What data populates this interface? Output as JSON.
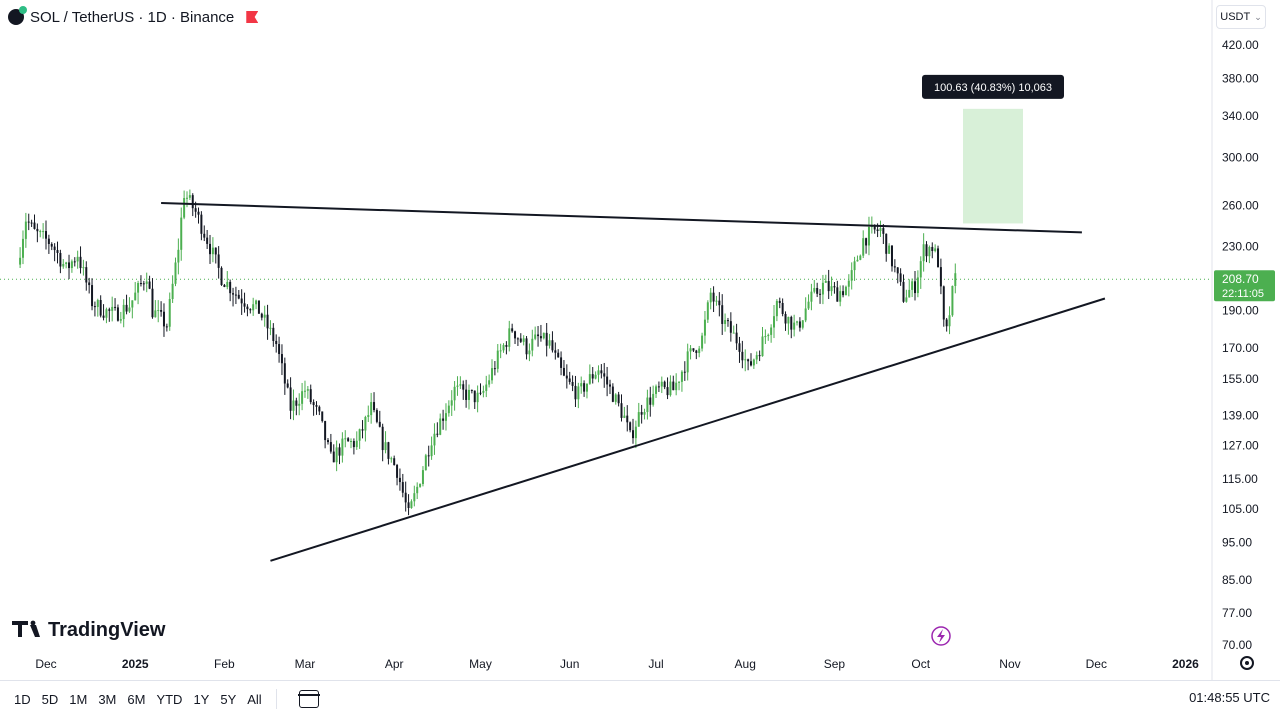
{
  "header": {
    "symbol": "SOL",
    "title": "SOL / TetherUS · 1D · Binance"
  },
  "currency": {
    "label": "USDT"
  },
  "branding": {
    "logo_text": "TradingView"
  },
  "price_badge": {
    "price": "208.70",
    "countdown": "22:11:05"
  },
  "measure": {
    "label": "100.63 (40.83%) 10,063",
    "from_price": 246.5,
    "to_price": 347.1
  },
  "bottombar": {
    "timeframes": [
      "1D",
      "5D",
      "1M",
      "3M",
      "6M",
      "YTD",
      "1Y",
      "5Y",
      "All"
    ],
    "clock": "01:48:55 UTC"
  },
  "colors": {
    "up": "#26a69a",
    "green_candle": "#4caf50",
    "down": "#131722",
    "measure_fill": "#d8f0d8",
    "badge": "#4caf50"
  },
  "chart_data": {
    "type": "candlestick",
    "scale": "log",
    "y_ticks": [
      420,
      380,
      340,
      300,
      260,
      230,
      190,
      170,
      155,
      139,
      127,
      115,
      105,
      95,
      85,
      77,
      70
    ],
    "y_tick_labels": [
      "420.00",
      "380.00",
      "340.00",
      "300.00",
      "260.00",
      "230.00",
      "190.00",
      "170.00",
      "155.00",
      "139.00",
      "127.00",
      "115.00",
      "105.00",
      "95.00",
      "85.00",
      "77.00",
      "70.00"
    ],
    "x_labels": [
      "Dec",
      "2025",
      "Feb",
      "Mar",
      "Apr",
      "May",
      "Jun",
      "Jul",
      "Aug",
      "Sep",
      "Oct",
      "Nov",
      "Dec",
      "2026"
    ],
    "x_label_dates": [
      "2024-12-01",
      "2025-01-01",
      "2025-02-01",
      "2025-03-01",
      "2025-04-01",
      "2025-05-01",
      "2025-06-01",
      "2025-07-01",
      "2025-08-01",
      "2025-09-01",
      "2025-10-01",
      "2025-11-01",
      "2025-12-01",
      "2026-01-01"
    ],
    "last_price": 208.7,
    "close_path": [
      [
        "2024-11-22",
        218
      ],
      [
        "2024-11-25",
        250
      ],
      [
        "2024-11-28",
        240
      ],
      [
        "2024-12-04",
        232
      ],
      [
        "2024-12-09",
        215
      ],
      [
        "2024-12-13",
        225
      ],
      [
        "2024-12-18",
        195
      ],
      [
        "2024-12-22",
        190
      ],
      [
        "2024-12-26",
        188
      ],
      [
        "2024-12-31",
        193
      ],
      [
        "2025-01-06",
        212
      ],
      [
        "2025-01-08",
        190
      ],
      [
        "2025-01-13",
        182
      ],
      [
        "2025-01-17",
        230
      ],
      [
        "2025-01-19",
        270
      ],
      [
        "2025-01-23",
        255
      ],
      [
        "2025-01-27",
        235
      ],
      [
        "2025-02-01",
        210
      ],
      [
        "2025-02-07",
        198
      ],
      [
        "2025-02-14",
        190
      ],
      [
        "2025-02-20",
        172
      ],
      [
        "2025-02-25",
        142
      ],
      [
        "2025-03-02",
        150
      ],
      [
        "2025-03-07",
        138
      ],
      [
        "2025-03-11",
        122
      ],
      [
        "2025-03-16",
        128
      ],
      [
        "2025-03-20",
        128
      ],
      [
        "2025-03-25",
        142
      ],
      [
        "2025-03-29",
        128
      ],
      [
        "2025-04-03",
        118
      ],
      [
        "2025-04-07",
        103
      ],
      [
        "2025-04-10",
        112
      ],
      [
        "2025-04-15",
        130
      ],
      [
        "2025-04-19",
        139
      ],
      [
        "2025-04-23",
        150
      ],
      [
        "2025-04-27",
        148
      ],
      [
        "2025-05-02",
        146
      ],
      [
        "2025-05-08",
        165
      ],
      [
        "2025-05-13",
        180
      ],
      [
        "2025-05-18",
        170
      ],
      [
        "2025-05-22",
        175
      ],
      [
        "2025-05-26",
        172
      ],
      [
        "2025-05-31",
        155
      ],
      [
        "2025-06-05",
        148
      ],
      [
        "2025-06-09",
        155
      ],
      [
        "2025-06-12",
        160
      ],
      [
        "2025-06-17",
        148
      ],
      [
        "2025-06-21",
        138
      ],
      [
        "2025-06-23",
        130
      ],
      [
        "2025-06-27",
        142
      ],
      [
        "2025-07-03",
        150
      ],
      [
        "2025-07-08",
        150
      ],
      [
        "2025-07-13",
        165
      ],
      [
        "2025-07-18",
        175
      ],
      [
        "2025-07-21",
        200
      ],
      [
        "2025-07-25",
        185
      ],
      [
        "2025-07-31",
        172
      ],
      [
        "2025-08-03",
        160
      ],
      [
        "2025-08-07",
        170
      ],
      [
        "2025-08-10",
        180
      ],
      [
        "2025-08-13",
        195
      ],
      [
        "2025-08-17",
        185
      ],
      [
        "2025-08-20",
        180
      ],
      [
        "2025-08-24",
        195
      ],
      [
        "2025-08-29",
        205
      ],
      [
        "2025-09-03",
        200
      ],
      [
        "2025-09-07",
        205
      ],
      [
        "2025-09-12",
        235
      ],
      [
        "2025-09-15",
        240
      ],
      [
        "2025-09-18",
        242
      ],
      [
        "2025-09-22",
        220
      ],
      [
        "2025-09-26",
        198
      ],
      [
        "2025-09-30",
        205
      ],
      [
        "2025-10-03",
        228
      ],
      [
        "2025-10-06",
        230
      ],
      [
        "2025-10-08",
        220
      ],
      [
        "2025-10-10",
        182
      ],
      [
        "2025-10-11",
        178
      ],
      [
        "2025-10-13",
        200
      ],
      [
        "2025-10-14",
        208.7
      ]
    ],
    "overlays": {
      "upper_trendline": [
        [
          "2025-01-10",
          262
        ],
        [
          "2025-11-26",
          240
        ]
      ],
      "lower_trendline": [
        [
          "2025-02-17",
          90
        ],
        [
          "2025-12-04",
          197
        ]
      ]
    }
  }
}
